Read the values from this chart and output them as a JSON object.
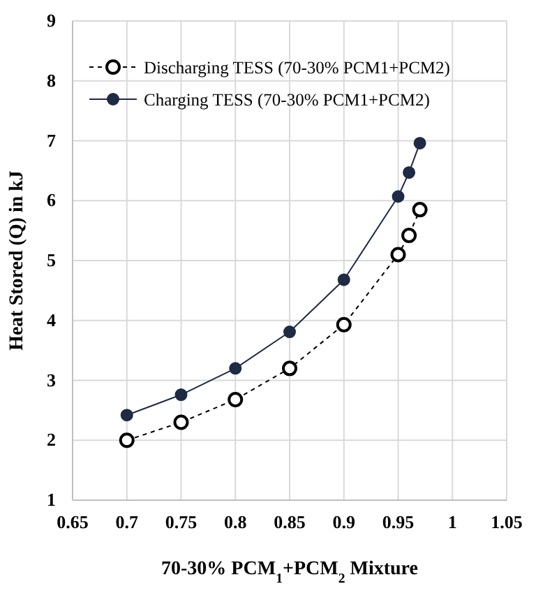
{
  "chart_data": {
    "type": "line",
    "xlabel": "70-30% PCM$_{1}$+PCM$_{2}$ Mixture",
    "ylabel": "Heat Stored (Q) in kJ",
    "x": [
      0.7,
      0.75,
      0.8,
      0.85,
      0.9,
      0.95,
      0.96,
      0.97
    ],
    "series": [
      {
        "name": "Discharging TESS (70-30% PCM1+PCM2)",
        "color": "#000000",
        "line_style": "dashed",
        "values": [
          2.0,
          2.3,
          2.68,
          3.2,
          3.93,
          5.1,
          5.42,
          5.85
        ]
      },
      {
        "name": "Charging TESS (70-30% PCM1+PCM2)",
        "color": "#1f2a44",
        "line_style": "solid",
        "values": [
          2.42,
          2.76,
          3.2,
          3.81,
          4.68,
          6.07,
          6.47,
          6.96
        ]
      }
    ],
    "xlim": [
      0.65,
      1.05
    ],
    "xticks": [
      0.65,
      0.7,
      0.75,
      0.8,
      0.85,
      0.9,
      0.95,
      1,
      1.05
    ],
    "ylim": [
      1,
      9
    ],
    "yticks": [
      1,
      2,
      3,
      4,
      5,
      6,
      7,
      8,
      9
    ],
    "grid": true,
    "legend": "top left",
    "marker": "circle"
  }
}
